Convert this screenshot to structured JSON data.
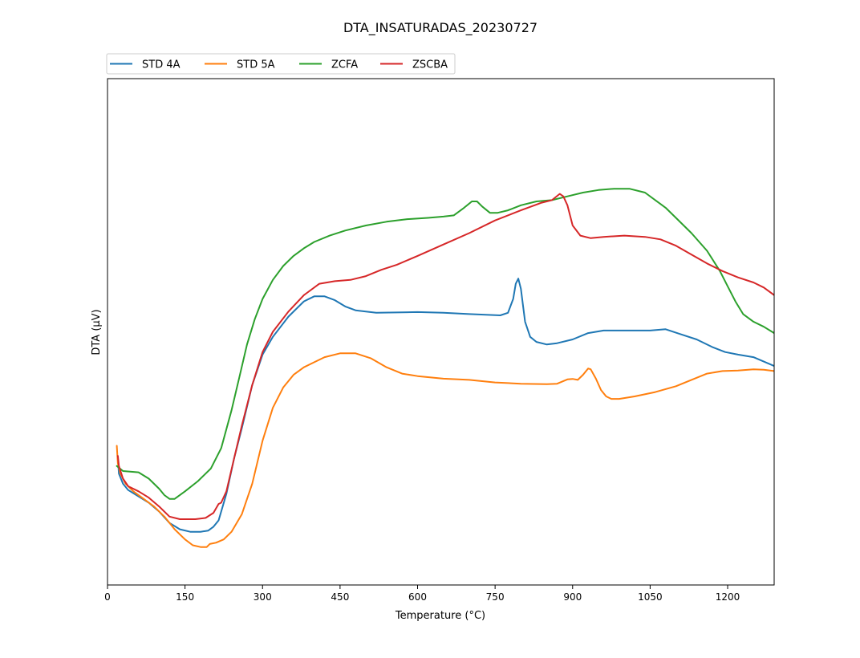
{
  "chart_data": {
    "type": "line",
    "title": "DTA_INSATURADAS_20230727",
    "xlabel": "Temperature (°C)",
    "ylabel": "DTA (µV)",
    "xlim": [
      0,
      1290
    ],
    "ylim": [
      -1.0,
      1.0
    ],
    "y_tick_labels_shown": false,
    "grid": false,
    "legend_position": "top-left, above plot",
    "x_ticks": [
      0,
      150,
      300,
      450,
      600,
      750,
      900,
      1050,
      1200
    ],
    "x_tick_labels": [
      "0",
      "150",
      "300",
      "450",
      "600",
      "750",
      "900",
      "1050",
      "1200"
    ],
    "series": [
      {
        "name": "STD 4A",
        "color": "#1f77b4",
        "points": [
          [
            20,
            -0.5
          ],
          [
            22,
            -0.56
          ],
          [
            30,
            -0.6
          ],
          [
            40,
            -0.625
          ],
          [
            60,
            -0.65
          ],
          [
            80,
            -0.675
          ],
          [
            100,
            -0.71
          ],
          [
            120,
            -0.755
          ],
          [
            140,
            -0.78
          ],
          [
            160,
            -0.79
          ],
          [
            180,
            -0.79
          ],
          [
            195,
            -0.785
          ],
          [
            205,
            -0.77
          ],
          [
            215,
            -0.745
          ],
          [
            230,
            -0.64
          ],
          [
            245,
            -0.5
          ],
          [
            260,
            -0.38
          ],
          [
            280,
            -0.21
          ],
          [
            300,
            -0.09
          ],
          [
            320,
            -0.02
          ],
          [
            350,
            0.06
          ],
          [
            380,
            0.12
          ],
          [
            400,
            0.14
          ],
          [
            420,
            0.14
          ],
          [
            440,
            0.125
          ],
          [
            460,
            0.1
          ],
          [
            480,
            0.085
          ],
          [
            520,
            0.075
          ],
          [
            600,
            0.078
          ],
          [
            650,
            0.075
          ],
          [
            700,
            0.07
          ],
          [
            760,
            0.065
          ],
          [
            775,
            0.075
          ],
          [
            785,
            0.13
          ],
          [
            790,
            0.19
          ],
          [
            795,
            0.21
          ],
          [
            800,
            0.17
          ],
          [
            808,
            0.04
          ],
          [
            818,
            -0.02
          ],
          [
            830,
            -0.04
          ],
          [
            850,
            -0.05
          ],
          [
            870,
            -0.045
          ],
          [
            900,
            -0.03
          ],
          [
            930,
            -0.005
          ],
          [
            960,
            0.005
          ],
          [
            1000,
            0.005
          ],
          [
            1050,
            0.005
          ],
          [
            1080,
            0.01
          ],
          [
            1110,
            -0.01
          ],
          [
            1140,
            -0.03
          ],
          [
            1170,
            -0.06
          ],
          [
            1195,
            -0.08
          ],
          [
            1220,
            -0.09
          ],
          [
            1250,
            -0.1
          ],
          [
            1290,
            -0.135
          ]
        ]
      },
      {
        "name": "STD 5A",
        "color": "#ff7f0e",
        "points": [
          [
            18,
            -0.45
          ],
          [
            20,
            -0.52
          ],
          [
            25,
            -0.56
          ],
          [
            35,
            -0.6
          ],
          [
            50,
            -0.63
          ],
          [
            70,
            -0.66
          ],
          [
            90,
            -0.69
          ],
          [
            110,
            -0.73
          ],
          [
            130,
            -0.78
          ],
          [
            150,
            -0.82
          ],
          [
            165,
            -0.843
          ],
          [
            180,
            -0.85
          ],
          [
            192,
            -0.85
          ],
          [
            198,
            -0.838
          ],
          [
            210,
            -0.833
          ],
          [
            225,
            -0.82
          ],
          [
            240,
            -0.79
          ],
          [
            260,
            -0.72
          ],
          [
            280,
            -0.6
          ],
          [
            300,
            -0.43
          ],
          [
            320,
            -0.3
          ],
          [
            340,
            -0.22
          ],
          [
            360,
            -0.17
          ],
          [
            380,
            -0.14
          ],
          [
            400,
            -0.12
          ],
          [
            420,
            -0.1
          ],
          [
            450,
            -0.085
          ],
          [
            480,
            -0.085
          ],
          [
            510,
            -0.105
          ],
          [
            540,
            -0.14
          ],
          [
            570,
            -0.165
          ],
          [
            600,
            -0.175
          ],
          [
            650,
            -0.185
          ],
          [
            700,
            -0.19
          ],
          [
            750,
            -0.2
          ],
          [
            800,
            -0.205
          ],
          [
            850,
            -0.207
          ],
          [
            870,
            -0.205
          ],
          [
            890,
            -0.188
          ],
          [
            900,
            -0.186
          ],
          [
            910,
            -0.19
          ],
          [
            920,
            -0.17
          ],
          [
            930,
            -0.145
          ],
          [
            935,
            -0.148
          ],
          [
            945,
            -0.185
          ],
          [
            955,
            -0.23
          ],
          [
            965,
            -0.255
          ],
          [
            975,
            -0.265
          ],
          [
            990,
            -0.265
          ],
          [
            1020,
            -0.255
          ],
          [
            1060,
            -0.238
          ],
          [
            1100,
            -0.215
          ],
          [
            1130,
            -0.19
          ],
          [
            1160,
            -0.165
          ],
          [
            1190,
            -0.155
          ],
          [
            1220,
            -0.153
          ],
          [
            1250,
            -0.148
          ],
          [
            1270,
            -0.15
          ],
          [
            1290,
            -0.155
          ]
        ]
      },
      {
        "name": "ZCFA",
        "color": "#2ca02c",
        "points": [
          [
            18,
            -0.53
          ],
          [
            30,
            -0.55
          ],
          [
            60,
            -0.555
          ],
          [
            80,
            -0.58
          ],
          [
            100,
            -0.62
          ],
          [
            110,
            -0.645
          ],
          [
            120,
            -0.66
          ],
          [
            130,
            -0.66
          ],
          [
            150,
            -0.63
          ],
          [
            175,
            -0.59
          ],
          [
            200,
            -0.54
          ],
          [
            220,
            -0.46
          ],
          [
            240,
            -0.31
          ],
          [
            255,
            -0.18
          ],
          [
            270,
            -0.05
          ],
          [
            285,
            0.05
          ],
          [
            300,
            0.13
          ],
          [
            320,
            0.205
          ],
          [
            340,
            0.26
          ],
          [
            360,
            0.3
          ],
          [
            380,
            0.33
          ],
          [
            400,
            0.355
          ],
          [
            430,
            0.38
          ],
          [
            460,
            0.4
          ],
          [
            500,
            0.42
          ],
          [
            540,
            0.435
          ],
          [
            580,
            0.445
          ],
          [
            620,
            0.45
          ],
          [
            650,
            0.455
          ],
          [
            670,
            0.46
          ],
          [
            690,
            0.49
          ],
          [
            705,
            0.515
          ],
          [
            715,
            0.515
          ],
          [
            725,
            0.495
          ],
          [
            740,
            0.47
          ],
          [
            755,
            0.47
          ],
          [
            775,
            0.48
          ],
          [
            800,
            0.5
          ],
          [
            830,
            0.515
          ],
          [
            860,
            0.52
          ],
          [
            890,
            0.535
          ],
          [
            920,
            0.55
          ],
          [
            950,
            0.56
          ],
          [
            980,
            0.565
          ],
          [
            1010,
            0.565
          ],
          [
            1040,
            0.55
          ],
          [
            1060,
            0.52
          ],
          [
            1080,
            0.49
          ],
          [
            1100,
            0.45
          ],
          [
            1130,
            0.39
          ],
          [
            1160,
            0.32
          ],
          [
            1185,
            0.24
          ],
          [
            1200,
            0.18
          ],
          [
            1215,
            0.12
          ],
          [
            1230,
            0.07
          ],
          [
            1250,
            0.04
          ],
          [
            1270,
            0.02
          ],
          [
            1290,
            -0.005
          ]
        ]
      },
      {
        "name": "ZSCBA",
        "color": "#d62728",
        "points": [
          [
            20,
            -0.49
          ],
          [
            22,
            -0.53
          ],
          [
            30,
            -0.58
          ],
          [
            40,
            -0.61
          ],
          [
            60,
            -0.63
          ],
          [
            80,
            -0.655
          ],
          [
            100,
            -0.69
          ],
          [
            120,
            -0.73
          ],
          [
            140,
            -0.74
          ],
          [
            170,
            -0.74
          ],
          [
            190,
            -0.735
          ],
          [
            205,
            -0.715
          ],
          [
            215,
            -0.68
          ],
          [
            220,
            -0.675
          ],
          [
            230,
            -0.63
          ],
          [
            245,
            -0.5
          ],
          [
            260,
            -0.37
          ],
          [
            280,
            -0.21
          ],
          [
            300,
            -0.08
          ],
          [
            320,
            0.0
          ],
          [
            350,
            0.08
          ],
          [
            380,
            0.145
          ],
          [
            410,
            0.19
          ],
          [
            440,
            0.2
          ],
          [
            470,
            0.205
          ],
          [
            500,
            0.22
          ],
          [
            530,
            0.245
          ],
          [
            560,
            0.265
          ],
          [
            600,
            0.3
          ],
          [
            650,
            0.345
          ],
          [
            700,
            0.39
          ],
          [
            750,
            0.44
          ],
          [
            800,
            0.48
          ],
          [
            840,
            0.51
          ],
          [
            860,
            0.52
          ],
          [
            875,
            0.545
          ],
          [
            882,
            0.535
          ],
          [
            890,
            0.5
          ],
          [
            900,
            0.42
          ],
          [
            915,
            0.38
          ],
          [
            935,
            0.37
          ],
          [
            960,
            0.375
          ],
          [
            1000,
            0.38
          ],
          [
            1040,
            0.375
          ],
          [
            1070,
            0.365
          ],
          [
            1100,
            0.34
          ],
          [
            1130,
            0.305
          ],
          [
            1160,
            0.27
          ],
          [
            1190,
            0.24
          ],
          [
            1220,
            0.215
          ],
          [
            1250,
            0.195
          ],
          [
            1270,
            0.175
          ],
          [
            1290,
            0.145
          ]
        ]
      }
    ]
  }
}
